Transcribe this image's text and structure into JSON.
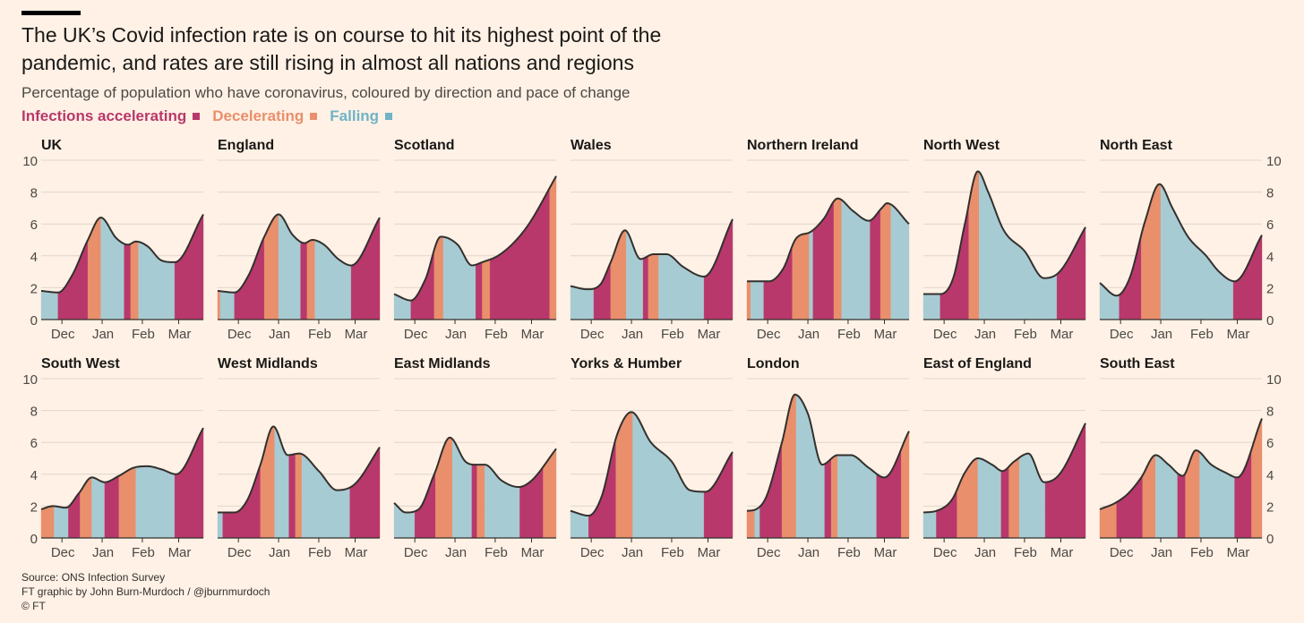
{
  "header": {
    "title": "The UK’s Covid infection rate is on course to hit its highest point of the pandemic, and rates are still rising in almost all nations and regions",
    "subtitle": "Percentage of population who have coronavirus, coloured by direction and pace of change"
  },
  "legend": {
    "accelerating": {
      "label": "Infections accelerating",
      "color": "#b8386b"
    },
    "decelerating": {
      "label": "Decelerating",
      "color": "#e98f6c"
    },
    "falling": {
      "label": "Falling",
      "color": "#70b3c8"
    }
  },
  "footer": {
    "source": "Source: ONS Infection Survey",
    "credit": "FT graphic by John Burn-Murdoch / @jburnmurdoch",
    "copyright": "© FT"
  },
  "chart_data": {
    "type": "area",
    "x_range": [
      "2021-11-15",
      "2022-03-20"
    ],
    "x_ticks": [
      {
        "label": "Dec",
        "date": "2021-12-01"
      },
      {
        "label": "Jan",
        "date": "2022-01-01"
      },
      {
        "label": "Feb",
        "date": "2022-02-01"
      },
      {
        "label": "Mar",
        "date": "2022-03-01"
      }
    ],
    "y_range": [
      0,
      10
    ],
    "y_ticks": [
      0,
      2,
      4,
      6,
      8,
      10
    ],
    "grid": true,
    "fill_colors": {
      "A": "#b8386b",
      "D": "#e98f6c",
      "F": "#a7cbd2"
    },
    "panels": [
      {
        "name": "UK",
        "x": [
          "2021-11-15",
          "2021-11-28",
          "2021-12-09",
          "2021-12-21",
          "2021-12-31",
          "2022-01-12",
          "2022-01-21",
          "2022-01-27",
          "2022-02-05",
          "2022-02-16",
          "2022-02-26",
          "2022-03-20"
        ],
        "y": [
          1.8,
          1.7,
          2.8,
          5.0,
          6.4,
          5.1,
          4.7,
          4.9,
          4.6,
          3.7,
          3.6,
          6.6
        ],
        "periods": [
          [
            "2021-11-15",
            "F"
          ],
          [
            "2021-11-28",
            "A"
          ],
          [
            "2021-12-21",
            "D"
          ],
          [
            "2021-12-31",
            "F"
          ],
          [
            "2022-01-18",
            "A"
          ],
          [
            "2022-01-23",
            "D"
          ],
          [
            "2022-01-29",
            "F"
          ],
          [
            "2022-02-26",
            "A"
          ]
        ]
      },
      {
        "name": "England",
        "x": [
          "2021-11-15",
          "2021-11-28",
          "2021-12-09",
          "2021-12-21",
          "2022-01-01",
          "2022-01-12",
          "2022-01-21",
          "2022-01-27",
          "2022-02-05",
          "2022-02-16",
          "2022-02-26",
          "2022-03-20"
        ],
        "y": [
          1.8,
          1.7,
          2.8,
          5.2,
          6.6,
          5.3,
          4.8,
          5.0,
          4.7,
          3.8,
          3.4,
          6.4
        ],
        "periods": [
          [
            "2021-11-15",
            "D"
          ],
          [
            "2021-11-17",
            "F"
          ],
          [
            "2021-11-28",
            "A"
          ],
          [
            "2021-12-21",
            "D"
          ],
          [
            "2022-01-01",
            "F"
          ],
          [
            "2022-01-18",
            "A"
          ],
          [
            "2022-01-23",
            "D"
          ],
          [
            "2022-01-29",
            "F"
          ],
          [
            "2022-02-26",
            "A"
          ]
        ]
      },
      {
        "name": "Scotland",
        "x": [
          "2021-11-15",
          "2021-11-28",
          "2021-12-09",
          "2021-12-21",
          "2022-01-03",
          "2022-01-14",
          "2022-01-22",
          "2022-02-03",
          "2022-02-15",
          "2022-02-27",
          "2022-03-20"
        ],
        "y": [
          1.6,
          1.2,
          2.5,
          5.2,
          4.7,
          3.4,
          3.6,
          4.0,
          4.8,
          6.0,
          9.0
        ],
        "periods": [
          [
            "2021-11-15",
            "F"
          ],
          [
            "2021-11-28",
            "A"
          ],
          [
            "2021-12-16",
            "D"
          ],
          [
            "2021-12-23",
            "F"
          ],
          [
            "2022-01-17",
            "A"
          ],
          [
            "2022-01-22",
            "D"
          ],
          [
            "2022-01-28",
            "A"
          ],
          [
            "2022-03-15",
            "D"
          ]
        ]
      },
      {
        "name": "Wales",
        "x": [
          "2021-11-15",
          "2021-11-28",
          "2021-12-08",
          "2021-12-16",
          "2021-12-27",
          "2022-01-08",
          "2022-01-18",
          "2022-01-28",
          "2022-02-10",
          "2022-02-26",
          "2022-03-20"
        ],
        "y": [
          2.1,
          1.9,
          2.2,
          3.6,
          5.6,
          3.8,
          4.1,
          4.1,
          3.3,
          2.7,
          6.3
        ],
        "periods": [
          [
            "2021-11-15",
            "F"
          ],
          [
            "2021-12-03",
            "A"
          ],
          [
            "2021-12-16",
            "D"
          ],
          [
            "2021-12-28",
            "F"
          ],
          [
            "2022-01-10",
            "A"
          ],
          [
            "2022-01-14",
            "D"
          ],
          [
            "2022-01-22",
            "F"
          ],
          [
            "2022-02-26",
            "A"
          ]
        ]
      },
      {
        "name": "Northern Ireland",
        "x": [
          "2021-11-15",
          "2021-11-20",
          "2021-12-02",
          "2021-12-13",
          "2021-12-23",
          "2022-01-03",
          "2022-01-13",
          "2022-01-24",
          "2022-02-05",
          "2022-02-17",
          "2022-02-27",
          "2022-03-03",
          "2022-03-20"
        ],
        "y": [
          2.4,
          2.4,
          2.4,
          3.2,
          5.1,
          5.5,
          6.3,
          7.6,
          6.8,
          6.2,
          7.0,
          7.3,
          6.0
        ],
        "periods": [
          [
            "2021-11-15",
            "D"
          ],
          [
            "2021-11-18",
            "F"
          ],
          [
            "2021-11-28",
            "A"
          ],
          [
            "2021-12-20",
            "D"
          ],
          [
            "2022-01-02",
            "F"
          ],
          [
            "2022-01-05",
            "A"
          ],
          [
            "2022-01-21",
            "D"
          ],
          [
            "2022-01-27",
            "F"
          ],
          [
            "2022-02-18",
            "A"
          ],
          [
            "2022-02-26",
            "D"
          ],
          [
            "2022-03-06",
            "F"
          ]
        ]
      },
      {
        "name": "North West",
        "x": [
          "2021-11-15",
          "2021-11-28",
          "2021-12-08",
          "2021-12-17",
          "2021-12-27",
          "2022-01-04",
          "2022-01-16",
          "2022-02-01",
          "2022-02-16",
          "2022-02-28",
          "2022-03-20"
        ],
        "y": [
          1.6,
          1.6,
          2.6,
          6.0,
          9.3,
          8.0,
          5.6,
          4.3,
          2.6,
          3.0,
          5.8
        ],
        "periods": [
          [
            "2021-11-15",
            "F"
          ],
          [
            "2021-11-28",
            "A"
          ],
          [
            "2021-12-20",
            "D"
          ],
          [
            "2021-12-28",
            "F"
          ],
          [
            "2022-02-26",
            "A"
          ]
        ]
      },
      {
        "name": "North East",
        "x": [
          "2021-11-15",
          "2021-11-28",
          "2021-12-08",
          "2021-12-20",
          "2021-12-31",
          "2022-01-10",
          "2022-01-22",
          "2022-02-05",
          "2022-02-15",
          "2022-02-27",
          "2022-03-20"
        ],
        "y": [
          2.3,
          1.5,
          2.6,
          6.2,
          8.5,
          7.0,
          5.2,
          4.0,
          3.0,
          2.4,
          5.3
        ],
        "periods": [
          [
            "2021-11-15",
            "F"
          ],
          [
            "2021-11-30",
            "A"
          ],
          [
            "2021-12-17",
            "D"
          ],
          [
            "2022-01-01",
            "F"
          ],
          [
            "2022-02-26",
            "A"
          ]
        ]
      },
      {
        "name": "South West",
        "x": [
          "2021-11-15",
          "2021-11-24",
          "2021-12-04",
          "2021-12-14",
          "2021-12-24",
          "2022-01-03",
          "2022-01-14",
          "2022-01-25",
          "2022-02-05",
          "2022-02-16",
          "2022-02-27",
          "2022-03-20"
        ],
        "y": [
          1.8,
          2.0,
          1.9,
          2.8,
          3.8,
          3.5,
          3.9,
          4.4,
          4.5,
          4.3,
          4.0,
          6.9
        ],
        "periods": [
          [
            "2021-11-15",
            "D"
          ],
          [
            "2021-11-25",
            "F"
          ],
          [
            "2021-12-06",
            "A"
          ],
          [
            "2021-12-15",
            "D"
          ],
          [
            "2021-12-24",
            "F"
          ],
          [
            "2022-01-03",
            "A"
          ],
          [
            "2022-01-14",
            "D"
          ],
          [
            "2022-01-27",
            "F"
          ],
          [
            "2022-02-26",
            "A"
          ]
        ]
      },
      {
        "name": "West Midlands",
        "x": [
          "2021-11-15",
          "2021-11-28",
          "2021-12-08",
          "2021-12-18",
          "2021-12-28",
          "2022-01-08",
          "2022-01-17",
          "2022-02-01",
          "2022-02-15",
          "2022-03-01",
          "2022-03-20"
        ],
        "y": [
          1.6,
          1.6,
          2.4,
          4.6,
          7.0,
          5.2,
          5.3,
          4.2,
          3.0,
          3.4,
          5.7
        ],
        "periods": [
          [
            "2021-11-15",
            "F"
          ],
          [
            "2021-11-19",
            "A"
          ],
          [
            "2021-12-18",
            "D"
          ],
          [
            "2021-12-29",
            "F"
          ],
          [
            "2022-01-09",
            "A"
          ],
          [
            "2022-01-14",
            "D"
          ],
          [
            "2022-01-19",
            "F"
          ],
          [
            "2022-02-25",
            "A"
          ]
        ]
      },
      {
        "name": "East Midlands",
        "x": [
          "2021-11-15",
          "2021-11-24",
          "2021-12-04",
          "2021-12-16",
          "2021-12-28",
          "2022-01-09",
          "2022-01-17",
          "2022-01-24",
          "2022-02-06",
          "2022-02-19",
          "2022-03-01",
          "2022-03-20"
        ],
        "y": [
          2.2,
          1.6,
          1.8,
          4.0,
          6.3,
          4.8,
          4.6,
          4.6,
          3.6,
          3.2,
          3.6,
          5.6
        ],
        "periods": [
          [
            "2021-11-15",
            "F"
          ],
          [
            "2021-12-01",
            "A"
          ],
          [
            "2021-12-17",
            "D"
          ],
          [
            "2021-12-30",
            "F"
          ],
          [
            "2022-01-14",
            "A"
          ],
          [
            "2022-01-18",
            "D"
          ],
          [
            "2022-01-24",
            "F"
          ],
          [
            "2022-02-20",
            "A"
          ],
          [
            "2022-03-10",
            "D"
          ]
        ]
      },
      {
        "name": "Yorks & Humber",
        "x": [
          "2021-11-15",
          "2021-11-29",
          "2021-12-09",
          "2021-12-21",
          "2022-01-01",
          "2022-01-16",
          "2022-02-01",
          "2022-02-15",
          "2022-02-27",
          "2022-03-20"
        ],
        "y": [
          1.7,
          1.4,
          2.6,
          6.5,
          7.9,
          6.0,
          4.8,
          3.0,
          2.9,
          5.4
        ],
        "periods": [
          [
            "2021-11-15",
            "F"
          ],
          [
            "2021-11-29",
            "A"
          ],
          [
            "2021-12-20",
            "D"
          ],
          [
            "2022-01-02",
            "F"
          ],
          [
            "2022-02-26",
            "A"
          ]
        ]
      },
      {
        "name": "London",
        "x": [
          "2021-11-15",
          "2021-11-22",
          "2021-11-30",
          "2021-12-12",
          "2021-12-22",
          "2022-01-01",
          "2022-01-12",
          "2022-01-24",
          "2022-02-03",
          "2022-02-17",
          "2022-03-01",
          "2022-03-20"
        ],
        "y": [
          1.7,
          1.8,
          2.6,
          6.0,
          9.0,
          7.8,
          4.6,
          5.2,
          5.2,
          4.4,
          3.8,
          6.7
        ],
        "periods": [
          [
            "2021-11-15",
            "D"
          ],
          [
            "2021-11-21",
            "F"
          ],
          [
            "2021-11-25",
            "A"
          ],
          [
            "2021-12-12",
            "D"
          ],
          [
            "2021-12-23",
            "F"
          ],
          [
            "2022-01-14",
            "A"
          ],
          [
            "2022-01-19",
            "D"
          ],
          [
            "2022-01-24",
            "F"
          ],
          [
            "2022-02-23",
            "A"
          ],
          [
            "2022-03-14",
            "D"
          ]
        ]
      },
      {
        "name": "East of England",
        "x": [
          "2021-11-15",
          "2021-11-25",
          "2021-12-07",
          "2021-12-17",
          "2021-12-27",
          "2022-01-07",
          "2022-01-15",
          "2022-01-24",
          "2022-02-04",
          "2022-02-16",
          "2022-02-28",
          "2022-03-20"
        ],
        "y": [
          1.6,
          1.7,
          2.4,
          4.1,
          5.0,
          4.6,
          4.2,
          4.8,
          5.3,
          3.5,
          4.0,
          7.2
        ],
        "periods": [
          [
            "2021-11-15",
            "F"
          ],
          [
            "2021-11-25",
            "A"
          ],
          [
            "2021-12-11",
            "D"
          ],
          [
            "2021-12-27",
            "F"
          ],
          [
            "2022-01-14",
            "A"
          ],
          [
            "2022-01-20",
            "D"
          ],
          [
            "2022-01-28",
            "F"
          ],
          [
            "2022-02-17",
            "A"
          ]
        ]
      },
      {
        "name": "South East",
        "x": [
          "2021-11-15",
          "2021-11-27",
          "2021-12-07",
          "2021-12-17",
          "2021-12-28",
          "2022-01-07",
          "2022-01-18",
          "2022-01-28",
          "2022-02-09",
          "2022-02-20",
          "2022-03-01",
          "2022-03-20"
        ],
        "y": [
          1.8,
          2.2,
          2.8,
          3.8,
          5.2,
          4.6,
          3.9,
          5.5,
          4.6,
          4.1,
          3.8,
          7.5
        ],
        "periods": [
          [
            "2021-11-15",
            "D"
          ],
          [
            "2021-11-28",
            "A"
          ],
          [
            "2021-12-18",
            "D"
          ],
          [
            "2021-12-28",
            "F"
          ],
          [
            "2022-01-14",
            "A"
          ],
          [
            "2022-01-20",
            "D"
          ],
          [
            "2022-01-31",
            "F"
          ],
          [
            "2022-02-27",
            "A"
          ],
          [
            "2022-03-12",
            "D"
          ]
        ]
      }
    ]
  }
}
